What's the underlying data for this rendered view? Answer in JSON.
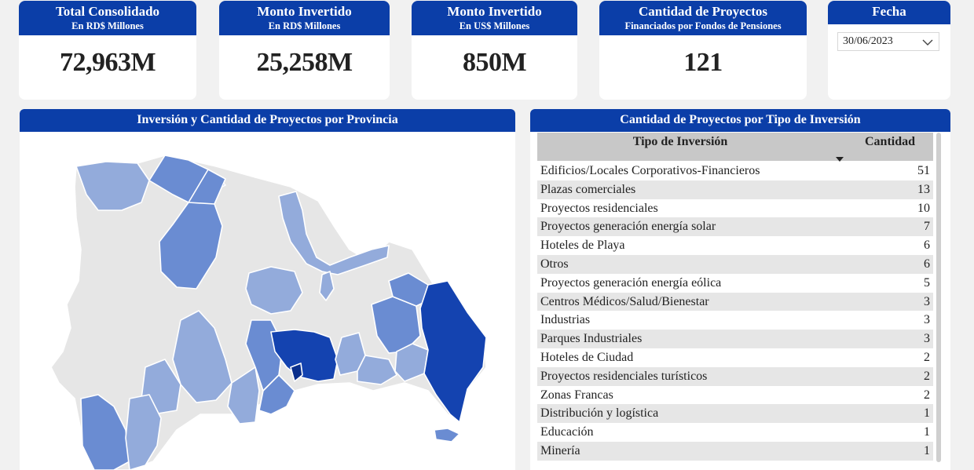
{
  "kpis": [
    {
      "title": "Total Consolidado",
      "subtitle": "En RD$ Millones",
      "value": "72,963M"
    },
    {
      "title": "Monto Invertido",
      "subtitle": "En RD$ Millones",
      "value": "25,258M"
    },
    {
      "title": "Monto Invertido",
      "subtitle": "En US$ Millones",
      "value": "850M"
    },
    {
      "title": "Cantidad de Proyectos",
      "subtitle": "Financiados por Fondos de Pensiones",
      "value": "121"
    }
  ],
  "fecha": {
    "title": "Fecha",
    "selected": "30/06/2023"
  },
  "map_panel": {
    "title": "Inversión y Cantidad de Proyectos por Provincia"
  },
  "table_panel": {
    "title": "Cantidad de Proyectos por Tipo de Inversión",
    "col_tipo": "Tipo de Inversión",
    "col_cantidad": "Cantidad",
    "rows": [
      {
        "tipo": "Edificios/Locales Corporativos-Financieros",
        "cantidad": "51"
      },
      {
        "tipo": "Plazas comerciales",
        "cantidad": "13"
      },
      {
        "tipo": "Proyectos residenciales",
        "cantidad": "10"
      },
      {
        "tipo": "Proyectos generación energía solar",
        "cantidad": "7"
      },
      {
        "tipo": "Hoteles de Playa",
        "cantidad": "6"
      },
      {
        "tipo": "Otros",
        "cantidad": "6"
      },
      {
        "tipo": "Proyectos generación energía eólica",
        "cantidad": "5"
      },
      {
        "tipo": "Centros Médicos/Salud/Bienestar",
        "cantidad": "3"
      },
      {
        "tipo": "Industrias",
        "cantidad": "3"
      },
      {
        "tipo": "Parques Industriales",
        "cantidad": "3"
      },
      {
        "tipo": "Hoteles de Ciudad",
        "cantidad": "2"
      },
      {
        "tipo": "Proyectos residenciales turísticos",
        "cantidad": "2"
      },
      {
        "tipo": "Zonas Francas",
        "cantidad": "2"
      },
      {
        "tipo": "Distribución y logística",
        "cantidad": "1"
      },
      {
        "tipo": "Educación",
        "cantidad": "1"
      },
      {
        "tipo": "Minería",
        "cantidad": "1"
      }
    ]
  },
  "colors": {
    "header_blue": "#0b3ea8",
    "map_light": "#e6e6e6",
    "map_low": "#93abdb",
    "map_mid": "#6a8cd2",
    "map_high": "#1443b0",
    "map_top": "#0a2f8c"
  },
  "icons": {
    "dropdown": "chevron-down-icon",
    "sort": "sort-descending-icon"
  }
}
